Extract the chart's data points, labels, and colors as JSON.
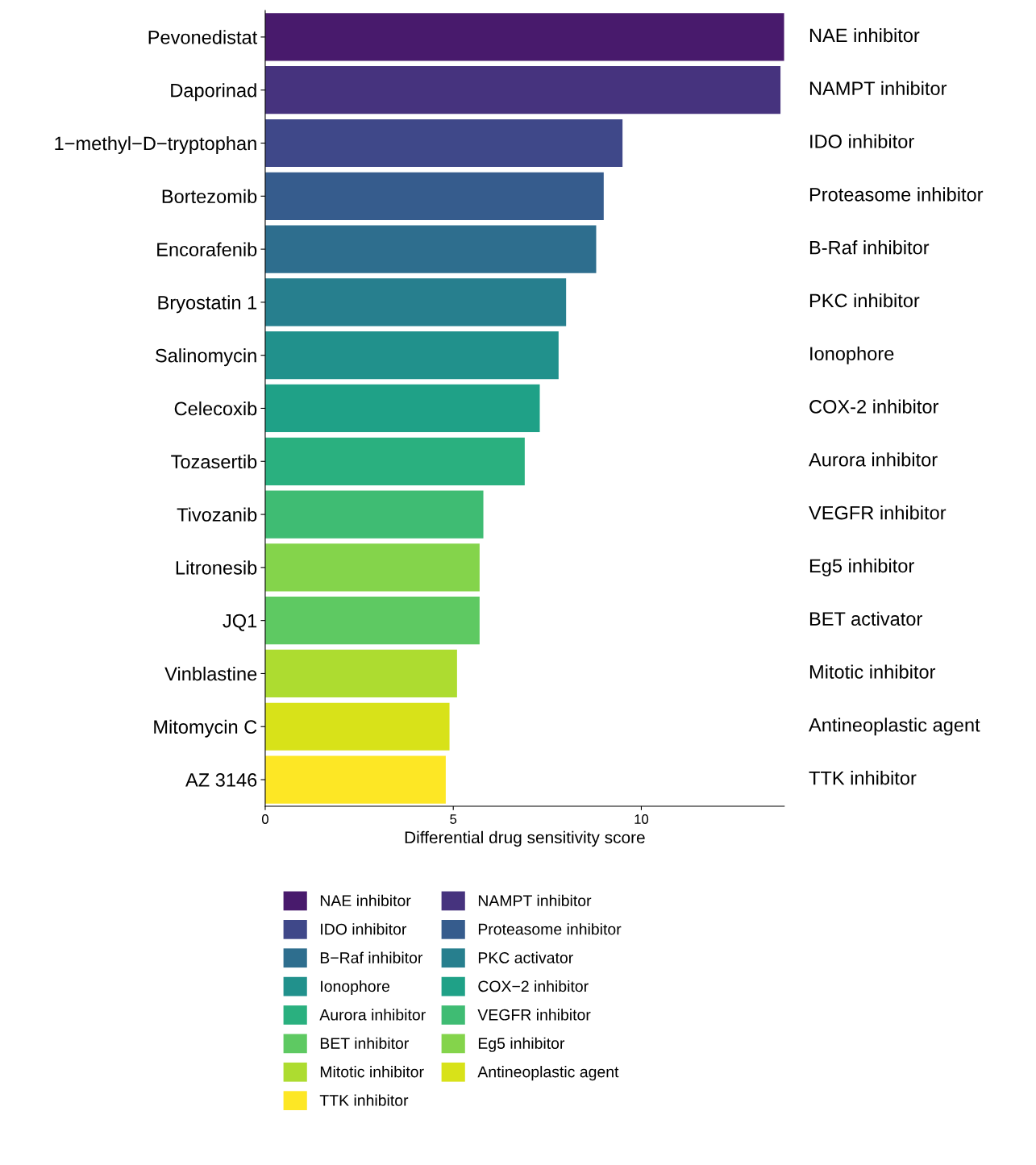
{
  "chart_data": {
    "type": "bar",
    "orientation": "horizontal",
    "xlabel": "Differential drug sensitivity score",
    "categories": [
      "Pevonedistat",
      "Daporinad",
      "1−methyl−D−tryptophan",
      "Bortezomib",
      "Encorafenib",
      "Bryostatin 1",
      "Salinomycin",
      "Celecoxib",
      "Tozasertib",
      "Tivozanib",
      "Litronesib",
      "JQ1",
      "Vinblastine",
      "Mitomycin C",
      "AZ 3146"
    ],
    "series": [
      {
        "name": "NAE inhibitor",
        "color": "#481a6c",
        "values": [
          13.8,
          null,
          null,
          null,
          null,
          null,
          null,
          null,
          null,
          null,
          null,
          null,
          null,
          null,
          null
        ]
      },
      {
        "name": "NAMPT inhibitor",
        "color": "#46337e",
        "values": [
          null,
          13.7,
          null,
          null,
          null,
          null,
          null,
          null,
          null,
          null,
          null,
          null,
          null,
          null,
          null
        ]
      },
      {
        "name": "IDO inhibitor",
        "color": "#3f4889",
        "values": [
          null,
          null,
          9.5,
          null,
          null,
          null,
          null,
          null,
          null,
          null,
          null,
          null,
          null,
          null,
          null
        ]
      },
      {
        "name": "Proteasome inhibitor",
        "color": "#365c8d",
        "values": [
          null,
          null,
          null,
          9.0,
          null,
          null,
          null,
          null,
          null,
          null,
          null,
          null,
          null,
          null,
          null
        ]
      },
      {
        "name": "B−Raf inhibitor",
        "color": "#2e6e8e",
        "values": [
          null,
          null,
          null,
          null,
          8.8,
          null,
          null,
          null,
          null,
          null,
          null,
          null,
          null,
          null,
          null
        ]
      },
      {
        "name": "PKC activator",
        "color": "#277f8e",
        "values": [
          null,
          null,
          null,
          null,
          null,
          8.0,
          null,
          null,
          null,
          null,
          null,
          null,
          null,
          null,
          null
        ]
      },
      {
        "name": "Ionophore",
        "color": "#21918c",
        "values": [
          null,
          null,
          null,
          null,
          null,
          null,
          7.8,
          null,
          null,
          null,
          null,
          null,
          null,
          null,
          null
        ]
      },
      {
        "name": "COX−2 inhibitor",
        "color": "#1fa187",
        "values": [
          null,
          null,
          null,
          null,
          null,
          null,
          null,
          7.3,
          null,
          null,
          null,
          null,
          null,
          null,
          null
        ]
      },
      {
        "name": "Aurora inhibitor",
        "color": "#2ab07f",
        "values": [
          null,
          null,
          null,
          null,
          null,
          null,
          null,
          null,
          6.9,
          null,
          null,
          null,
          null,
          null,
          null
        ]
      },
      {
        "name": "VEGFR inhibitor",
        "color": "#3fbc73",
        "values": [
          null,
          null,
          null,
          null,
          null,
          null,
          null,
          null,
          null,
          5.8,
          null,
          null,
          null,
          null,
          null
        ]
      },
      {
        "name": "BET inhibitor",
        "color": "#5ec962",
        "values": [
          null,
          null,
          null,
          null,
          null,
          null,
          null,
          null,
          null,
          null,
          null,
          5.7,
          null,
          null,
          null
        ]
      },
      {
        "name": "Eg5 inhibitor",
        "color": "#84d44b",
        "values": [
          null,
          null,
          null,
          null,
          null,
          null,
          null,
          null,
          null,
          null,
          5.7,
          null,
          null,
          null,
          null
        ]
      },
      {
        "name": "Mitotic inhibitor",
        "color": "#addc30",
        "values": [
          null,
          null,
          null,
          null,
          null,
          null,
          null,
          null,
          null,
          null,
          null,
          null,
          5.1,
          null,
          null
        ]
      },
      {
        "name": "Antineoplastic agent",
        "color": "#d8e219",
        "values": [
          null,
          null,
          null,
          null,
          null,
          null,
          null,
          null,
          null,
          null,
          null,
          null,
          null,
          4.9,
          null
        ]
      },
      {
        "name": "TTK inhibitor",
        "color": "#fde725",
        "values": [
          null,
          null,
          null,
          null,
          null,
          null,
          null,
          null,
          null,
          null,
          null,
          null,
          null,
          null,
          4.8
        ]
      }
    ],
    "xlim": [
      0,
      13.8
    ],
    "xticks": [
      0,
      5,
      10
    ],
    "grid": false,
    "legend": "bottom",
    "annotations": [
      "NAE inhibitor",
      "NAMPT inhibitor",
      "IDO inhibitor",
      "Proteasome inhibitor",
      "B-Raf inhibitor",
      "PKC inhibitor",
      "Ionophore",
      "COX-2 inhibitor",
      "Aurora inhibitor",
      "VEGFR inhibitor",
      "Eg5 inhibitor",
      "BET activator",
      "Mitotic inhibitor",
      "Antineoplastic agent",
      "TTK inhibitor"
    ]
  }
}
